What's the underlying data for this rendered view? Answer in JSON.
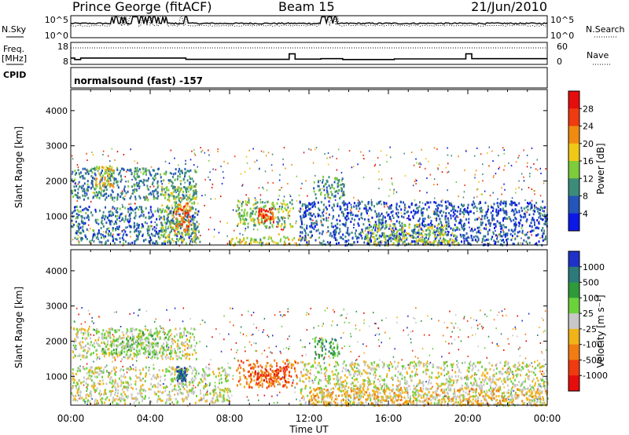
{
  "header": {
    "station": "Prince George (fitACF)",
    "beam": "Beam 15",
    "date": "21/Jun/2010"
  },
  "chart_data": [
    {
      "type": "line",
      "panel": "noise",
      "left_label": "N.Sky",
      "right_label": "N.Search",
      "left_ticks": [
        "10^5",
        "10^0"
      ],
      "right_ticks": [
        "10^5",
        "10^0"
      ],
      "series": [
        {
          "name": "N.Sky",
          "style": "solid",
          "level": 0.65
        },
        {
          "name": "N.Search",
          "style": "dotted",
          "level": 0.55
        }
      ],
      "spike_windows_hours": [
        [
          2.0,
          4.9
        ],
        [
          5.5,
          5.9
        ],
        [
          12.6,
          13.6
        ]
      ]
    },
    {
      "type": "line",
      "panel": "frequency",
      "left_label_top": "Freq.",
      "left_label_bottom": "[MHz]",
      "left_ticks": [
        "18",
        "8"
      ],
      "right_label": "Nave",
      "right_ticks": [
        "60",
        "0"
      ],
      "freq_steps_hours": [
        [
          0,
          0.2,
          10.9
        ],
        [
          0.2,
          0.5,
          10.2
        ],
        [
          0.5,
          5.8,
          10.9
        ],
        [
          5.8,
          11.0,
          10.3
        ],
        [
          11.0,
          11.3,
          12.8
        ],
        [
          11.3,
          12.6,
          10.4
        ],
        [
          12.6,
          13.7,
          10.6
        ],
        [
          13.7,
          16.3,
          10.2
        ],
        [
          16.3,
          19.9,
          10.5
        ],
        [
          19.9,
          20.2,
          12.8
        ],
        [
          20.2,
          24.0,
          10.6
        ]
      ],
      "nave_level": 0.75
    },
    {
      "type": "text",
      "panel": "cpid",
      "label": "CPID",
      "text": "normalsound (fast) -157"
    },
    {
      "type": "heatmap",
      "panel": "power",
      "x_range_hours": [
        0,
        24
      ],
      "x_ticks": [
        "00:00",
        "04:00",
        "08:00",
        "12:00",
        "16:00",
        "20:00",
        "00:00"
      ],
      "xlabel": "Time UT",
      "ylabel": "Slant Range [km]",
      "y_range_km": [
        180,
        4600
      ],
      "y_ticks": [
        1000,
        2000,
        3000,
        4000
      ],
      "colorbar_label": "Power [dB]",
      "colorbar_range": [
        0,
        32
      ],
      "colorbar_ticks": [
        "4",
        "8",
        "12",
        "16",
        "20",
        "24",
        "28"
      ],
      "colors": [
        "#0b18e6",
        "#2455b8",
        "#3c8c7a",
        "#7ccc3c",
        "#f0c816",
        "#f08a10",
        "#f03a10",
        "#e60d0d"
      ],
      "echo_regions": [
        {
          "t0": 0.0,
          "t1": 6.3,
          "r0": 1500,
          "r1": 2400,
          "value": 9
        },
        {
          "t0": 1.2,
          "t1": 2.2,
          "r0": 1800,
          "r1": 2450,
          "value": 18
        },
        {
          "t0": 0.0,
          "t1": 6.5,
          "r0": 250,
          "r1": 1300,
          "value": 8
        },
        {
          "t0": 4.5,
          "t1": 6.3,
          "r0": 300,
          "r1": 1900,
          "value": 14
        },
        {
          "t0": 5.2,
          "t1": 6.0,
          "r0": 600,
          "r1": 1400,
          "value": 24
        },
        {
          "t0": 8.3,
          "t1": 11.2,
          "r0": 700,
          "r1": 1500,
          "value": 14
        },
        {
          "t0": 9.4,
          "t1": 10.2,
          "r0": 850,
          "r1": 1250,
          "value": 26
        },
        {
          "t0": 12.2,
          "t1": 13.8,
          "r0": 1500,
          "r1": 2150,
          "value": 11
        },
        {
          "t0": 11.5,
          "t1": 24.0,
          "r0": 200,
          "r1": 1450,
          "value": 6
        },
        {
          "t0": 14.8,
          "t1": 19.5,
          "r0": 200,
          "r1": 800,
          "value": 15
        },
        {
          "t0": 8.0,
          "t1": 12.0,
          "r0": 200,
          "r1": 450,
          "value": 16
        }
      ]
    },
    {
      "type": "heatmap",
      "panel": "velocity",
      "x_range_hours": [
        0,
        24
      ],
      "x_ticks": [
        "00:00",
        "04:00",
        "08:00",
        "12:00",
        "16:00",
        "20:00",
        "00:00"
      ],
      "xlabel": "Time UT",
      "ylabel": "Slant Range [km]",
      "y_range_km": [
        180,
        4600
      ],
      "y_ticks": [
        1000,
        2000,
        3000,
        4000
      ],
      "colorbar_label": "Velocity [m s⁻¹]",
      "colorbar_ticks": [
        "1000",
        "500",
        "100",
        "25",
        "-25",
        "-100",
        "-500",
        "-1000"
      ],
      "colors": [
        "#1e32c8",
        "#2c7a7a",
        "#2e9a3a",
        "#6cd23c",
        "#c8c8c8",
        "#f0b418",
        "#f07c12",
        "#f03a10",
        "#e60d0d"
      ],
      "echo_regions": [
        {
          "t0": 0.0,
          "t1": 6.3,
          "r0": 1500,
          "r1": 2400,
          "value": 4
        },
        {
          "t0": 1.5,
          "t1": 5.0,
          "r0": 1650,
          "r1": 2350,
          "value": 3
        },
        {
          "t0": 0.0,
          "t1": 8.0,
          "r0": 250,
          "r1": 1300,
          "value": 4
        },
        {
          "t0": 5.3,
          "t1": 5.8,
          "r0": 900,
          "r1": 1300,
          "value": 1
        },
        {
          "t0": 8.3,
          "t1": 11.4,
          "r0": 700,
          "r1": 1500,
          "value": 6
        },
        {
          "t0": 9.0,
          "t1": 10.8,
          "r0": 900,
          "r1": 1300,
          "value": 7
        },
        {
          "t0": 12.2,
          "t1": 13.5,
          "r0": 1500,
          "r1": 2100,
          "value": 2
        },
        {
          "t0": 11.5,
          "t1": 24.0,
          "r0": 200,
          "r1": 1450,
          "value": 4
        },
        {
          "t0": 12.0,
          "t1": 24.0,
          "r0": 200,
          "r1": 700,
          "value": 5
        }
      ]
    }
  ]
}
